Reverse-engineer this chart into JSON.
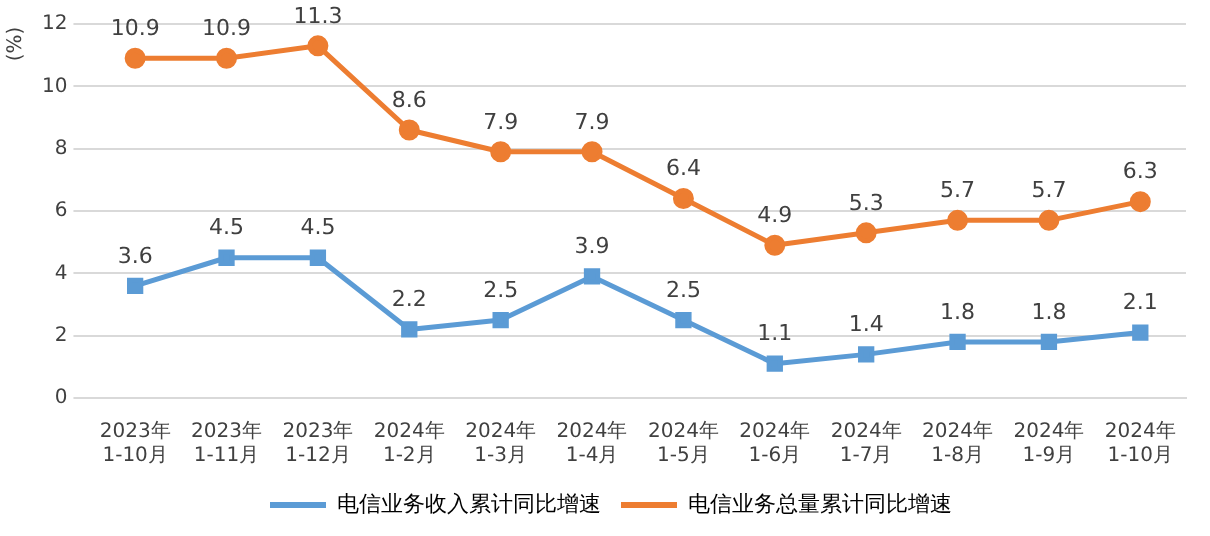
{
  "chart_data": {
    "type": "line",
    "ylabel": "(%)",
    "categories": [
      "2023年\n1-10月",
      "2023年\n1-11月",
      "2023年\n1-12月",
      "2024年\n1-2月",
      "2024年\n1-3月",
      "2024年\n1-4月",
      "2024年\n1-5月",
      "2024年\n1-6月",
      "2024年\n1-7月",
      "2024年\n1-8月",
      "2024年\n1-9月",
      "2024年\n1-10月"
    ],
    "series": [
      {
        "name": "电信业务收入累计同比增速",
        "color": "#5b9bd5",
        "marker": "square",
        "values": [
          3.6,
          4.5,
          4.5,
          2.2,
          2.5,
          3.9,
          2.5,
          1.1,
          1.4,
          1.8,
          1.8,
          2.1
        ]
      },
      {
        "name": "电信业务总量累计同比增速",
        "color": "#ed7d31",
        "marker": "circle",
        "values": [
          10.9,
          10.9,
          11.3,
          8.6,
          7.9,
          7.9,
          6.4,
          4.9,
          5.3,
          5.7,
          5.7,
          6.3
        ]
      }
    ],
    "ylim": [
      0,
      12
    ],
    "yticks": [
      0,
      2,
      4,
      6,
      8,
      10,
      12
    ],
    "grid": "y",
    "legend": "bottom",
    "data_labels": true
  }
}
